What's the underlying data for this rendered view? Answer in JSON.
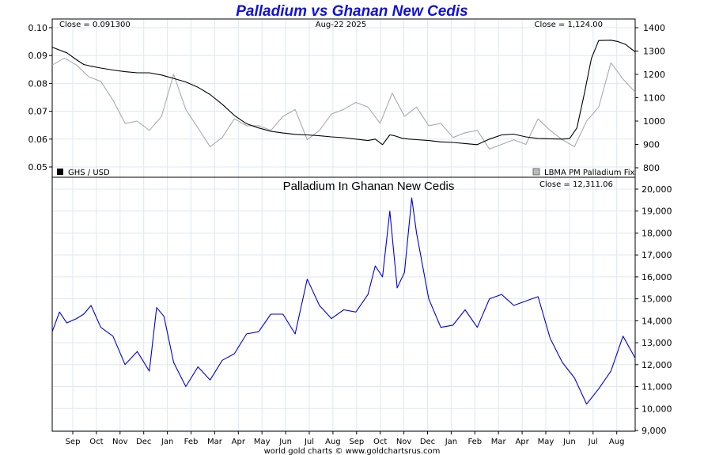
{
  "chart_data": [
    {
      "type": "line",
      "title": "Palladium vs Ghanan New Cedis",
      "date_label": "Aug-22  2025",
      "left_close_label": "Close = 0.091300",
      "right_close_label": "Close = 1,124.00",
      "x_ticks": [
        "Sep",
        "Oct",
        "Nov",
        "Dec",
        "Jan",
        "Feb",
        "Mar",
        "Apr",
        "May",
        "Jun",
        "Jul",
        "Aug",
        "Sep",
        "Oct",
        "Nov",
        "Dec",
        "Jan",
        "Feb",
        "Mar",
        "Apr",
        "May",
        "Jun",
        "Jul",
        "Aug"
      ],
      "y_left_ticks": [
        "0.10",
        "0.09",
        "0.08",
        "0.07",
        "0.06",
        "0.05"
      ],
      "y_left_range": [
        0.05,
        0.1
      ],
      "y_right_ticks": [
        "1400",
        "1300",
        "1200",
        "1100",
        "1000",
        "900",
        "800"
      ],
      "y_right_range": [
        800,
        1400
      ],
      "grid": true,
      "legend": [
        {
          "name": "GHS / USD",
          "color": "#000000",
          "position": "bottom-left"
        },
        {
          "name": "LBMA PM Palladium Fix",
          "color": "#aaaaaa",
          "position": "bottom-right"
        }
      ],
      "series": [
        {
          "name": "GHS / USD",
          "axis": "left",
          "color": "#000000",
          "x": [
            0,
            0.3,
            0.6,
            1.0,
            1.3,
            1.6,
            2.0,
            2.5,
            3.0,
            3.5,
            4.0,
            4.5,
            5.0,
            5.5,
            6.0,
            6.5,
            7.0,
            7.5,
            8.0,
            8.5,
            9.0,
            9.5,
            10.0,
            10.5,
            11.0,
            11.5,
            12.0,
            12.5,
            13.0,
            13.3,
            13.6,
            13.9,
            14.1,
            14.4,
            14.7,
            15.0,
            15.5,
            16.0,
            16.5,
            17.0,
            17.5,
            18.0,
            18.5,
            19.0,
            19.5,
            20.0,
            20.5,
            21.0,
            21.3,
            21.6,
            21.9,
            22.2,
            22.5,
            23.0,
            23.3,
            23.6,
            24.0
          ],
          "values": [
            0.093,
            0.092,
            0.091,
            0.0885,
            0.0868,
            0.0862,
            0.0855,
            0.0848,
            0.0842,
            0.0838,
            0.0838,
            0.083,
            0.0818,
            0.0805,
            0.0786,
            0.076,
            0.0725,
            0.0685,
            0.0655,
            0.064,
            0.0628,
            0.0622,
            0.0617,
            0.0615,
            0.0612,
            0.0608,
            0.0605,
            0.06,
            0.0595,
            0.06,
            0.058,
            0.0615,
            0.0612,
            0.0603,
            0.06,
            0.0598,
            0.0595,
            0.059,
            0.0588,
            0.0584,
            0.058,
            0.06,
            0.0615,
            0.0618,
            0.0608,
            0.0602,
            0.0601,
            0.06,
            0.0602,
            0.064,
            0.076,
            0.089,
            0.0954,
            0.0955,
            0.095,
            0.094,
            0.0913
          ]
        },
        {
          "name": "LBMA PM Palladium Fix",
          "axis": "right",
          "color": "#aaaaaa",
          "x": [
            0,
            0.5,
            1.0,
            1.5,
            2.0,
            2.5,
            3.0,
            3.5,
            4.0,
            4.5,
            5.0,
            5.5,
            6.0,
            6.5,
            7.0,
            7.5,
            8.0,
            8.5,
            9.0,
            9.5,
            10.0,
            10.5,
            11.0,
            11.5,
            12.0,
            12.5,
            13.0,
            13.5,
            14.0,
            14.5,
            15.0,
            15.5,
            16.0,
            16.5,
            17.0,
            17.5,
            18.0,
            18.5,
            19.0,
            19.5,
            20.0,
            20.5,
            21.0,
            21.5,
            22.0,
            22.5,
            23.0,
            23.5,
            24.0
          ],
          "values": [
            1240,
            1270,
            1240,
            1190,
            1170,
            1090,
            990,
            1000,
            960,
            1020,
            1200,
            1050,
            970,
            890,
            930,
            1010,
            980,
            980,
            960,
            1020,
            1050,
            920,
            960,
            1030,
            1050,
            1080,
            1060,
            990,
            1120,
            1020,
            1060,
            980,
            990,
            930,
            950,
            960,
            880,
            900,
            920,
            900,
            1010,
            960,
            920,
            890,
            1000,
            1060,
            1250,
            1180,
            1124
          ]
        },
        {
          "name": "Palladium In Ghanan New Cedis",
          "color": "#0000dd",
          "x": [
            0,
            0.3,
            0.6,
            1.0,
            1.3,
            1.6,
            2.0,
            2.5,
            3.0,
            3.5,
            4.0,
            4.3,
            4.6,
            5.0,
            5.5,
            6.0,
            6.5,
            7.0,
            7.5,
            8.0,
            8.5,
            9.0,
            9.5,
            10.0,
            10.5,
            11.0,
            11.5,
            12.0,
            12.5,
            13.0,
            13.3,
            13.6,
            13.9,
            14.2,
            14.5,
            14.8,
            15.0,
            15.5,
            16.0,
            16.5,
            17.0,
            17.5,
            18.0,
            18.5,
            19.0,
            19.5,
            20.0,
            20.5,
            21.0,
            21.5,
            22.0,
            22.5,
            23.0,
            23.5,
            24.0
          ],
          "values": [
            13500,
            14400,
            13900,
            14100,
            14300,
            14700,
            13700,
            13300,
            12000,
            12600,
            11700,
            14600,
            14200,
            12100,
            11000,
            11900,
            11300,
            12200,
            12500,
            13400,
            13500,
            14300,
            14300,
            13400,
            15900,
            14700,
            14100,
            14500,
            14400,
            15200,
            16500,
            16000,
            19000,
            15500,
            16200,
            19600,
            18000,
            15000,
            13700,
            13800,
            14500,
            13700,
            15000,
            15200,
            14700,
            14900,
            15100,
            13200,
            12100,
            11400,
            10200,
            10900,
            11700,
            13300,
            12300
          ]
        }
      ]
    },
    {
      "type": "line",
      "title": "Palladium In Ghanan New Cedis",
      "close_label": "Close = 12,311.06",
      "y_right_ticks": [
        "20,000",
        "19,000",
        "18,000",
        "17,000",
        "16,000",
        "15,000",
        "14,000",
        "13,000",
        "12,000",
        "11,000",
        "10,000",
        "9,000"
      ],
      "y_right_range": [
        9000,
        20000
      ],
      "grid": true,
      "series_ref": "Palladium In Ghanan New Cedis"
    }
  ],
  "footer": {
    "credit": "world gold charts © www.goldchartsrus.com"
  },
  "colors": {
    "title": "#1010e0",
    "grid": "#dde8f0",
    "cedis_line": "#0000dd",
    "ghs_line": "#000000",
    "palladium_line": "#aaaaaa"
  }
}
